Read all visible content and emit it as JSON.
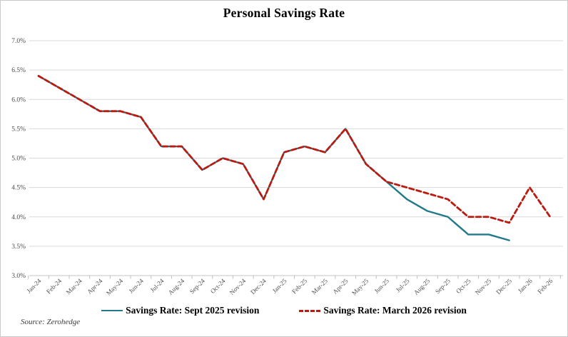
{
  "page": {
    "title": "Personal Savings Rate",
    "source": "Source: Zerohedge"
  },
  "legend": {
    "item1": "Savings Rate: Sept 2025 revision",
    "item2": "Savings Rate: March 2026 revision"
  },
  "colors": {
    "sept_revision_line": "#21798a",
    "march_revision_line": "#ba1a10",
    "gridline": "#d9d9d9",
    "axis_line": "#c6c6c6",
    "tick": "#bfbfbf",
    "tick_label": "#4d4d4d"
  },
  "chart_data": {
    "type": "line",
    "title": "Personal Savings Rate",
    "xlabel": "",
    "ylabel": "",
    "ylim": [
      3.0,
      7.0
    ],
    "ytick_step": 0.5,
    "ytick_labels": [
      "7.0%",
      "6.5%",
      "6.0%",
      "5.5%",
      "5.0%",
      "4.5%",
      "4.0%",
      "3.5%",
      "3.0%"
    ],
    "grid": "horizontal",
    "legend_position": "bottom-center",
    "categories": [
      "Jan-24",
      "Feb-24",
      "Mar-24",
      "Apr-24",
      "May-24",
      "Jun-24",
      "Jul-24",
      "Aug-24",
      "Sep-24",
      "Oct-24",
      "Nov-24",
      "Dec-24",
      "Jan-25",
      "Feb-25",
      "Mar-25",
      "Apr-25",
      "May-25",
      "Jun-25",
      "Jul-25",
      "Aug-25",
      "Sep-25",
      "Oct-25",
      "Nov-25",
      "Dec-25",
      "Jan-26",
      "Feb-26"
    ],
    "series": [
      {
        "name": "Savings Rate: Sept 2025 revision",
        "color": "#21798a",
        "style": "solid",
        "values": [
          6.4,
          6.2,
          6.0,
          5.8,
          5.8,
          5.7,
          5.2,
          5.2,
          4.8,
          5.0,
          4.9,
          4.3,
          5.1,
          5.2,
          5.1,
          5.5,
          4.9,
          4.6,
          4.3,
          4.1,
          4.0,
          3.7,
          3.7,
          3.6,
          null,
          null
        ]
      },
      {
        "name": "Savings Rate: March 2026 revision",
        "color": "#ba1a10",
        "style": "dashed",
        "values": [
          6.4,
          6.2,
          6.0,
          5.8,
          5.8,
          5.7,
          5.2,
          5.2,
          4.8,
          5.0,
          4.9,
          4.3,
          5.1,
          5.2,
          5.1,
          5.5,
          4.9,
          4.6,
          4.5,
          4.4,
          4.3,
          4.0,
          4.0,
          3.9,
          4.5,
          4.0
        ]
      }
    ],
    "source": "Source: Zerohedge"
  }
}
